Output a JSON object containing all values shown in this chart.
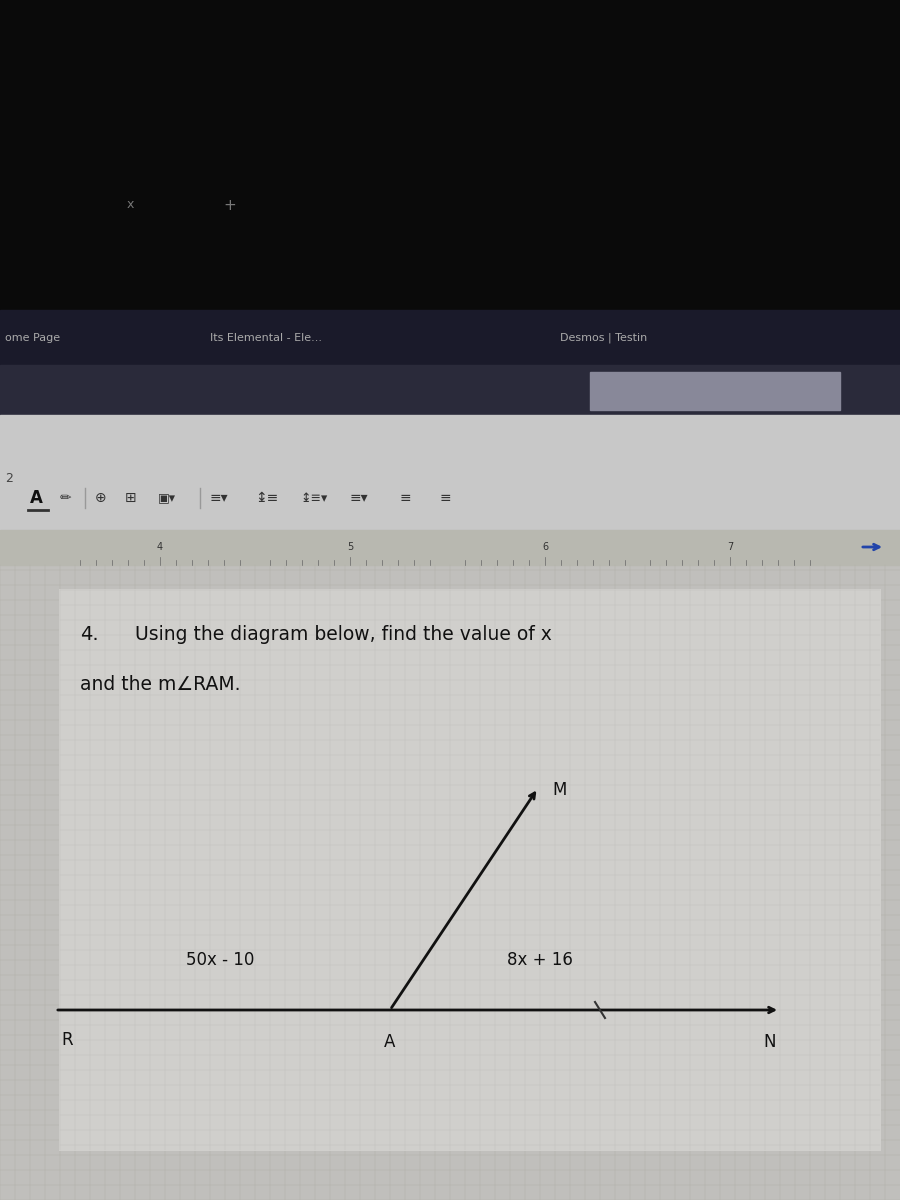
{
  "bg_top_color": "#0a0a0a",
  "tab_bar_color": "#1a1a2a",
  "url_bar_color": "#2a2a3a",
  "url_highlight_color": "#888899",
  "toolbar_color": "#c8c8c8",
  "ruler_color": "#b8b8b0",
  "content_bg_color": "#c0bfbc",
  "box_bg_color": "#d0cfcc",
  "box_border_color": "#555555",
  "text_color": "#111111",
  "dim_text_color": "#888888",
  "tab_x": "x",
  "tab_plus": "+",
  "tab1": "ome Page",
  "tab2": "Its Elemental - Ele...",
  "tab3": "Desmos | Testin",
  "ruler_nums": [
    "4",
    "5",
    "6",
    "7"
  ],
  "q_num": "4.",
  "q_line1": "Using the diagram below, find the value of x",
  "q_line2": "and the m∠RAM.",
  "label_R": "R",
  "label_A": "A",
  "label_N": "N",
  "label_M": "M",
  "label_left": "50x - 10",
  "label_right": "8x + 16",
  "line_color": "#111111"
}
